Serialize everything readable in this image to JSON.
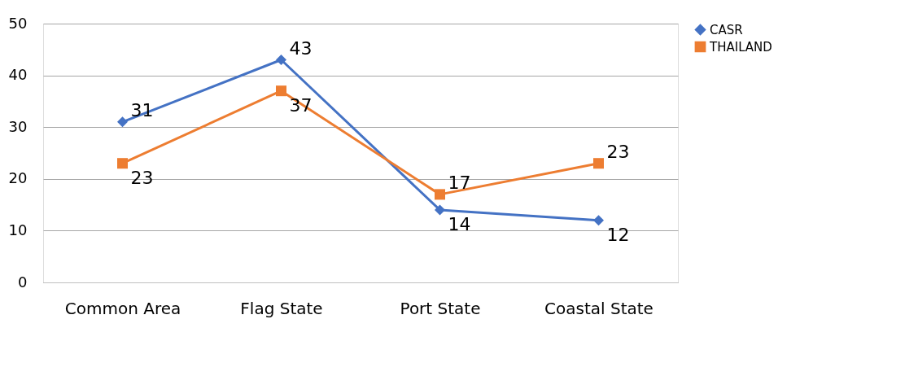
{
  "chart_data": {
    "type": "line",
    "categories": [
      "Common Area",
      "Flag State",
      "Port State",
      "Coastal State"
    ],
    "series": [
      {
        "name": "CASR",
        "color": "#4472c4",
        "marker": "diamond",
        "values": [
          31,
          43,
          14,
          12
        ]
      },
      {
        "name": "THAILAND",
        "color": "#ed7d31",
        "marker": "square",
        "values": [
          23,
          37,
          17,
          23
        ]
      }
    ],
    "ylim": [
      0,
      50
    ],
    "yticks": [
      0,
      10,
      20,
      30,
      40,
      50
    ],
    "grid": "y",
    "legend": "right",
    "data_labels": true,
    "line_style": "solid"
  }
}
